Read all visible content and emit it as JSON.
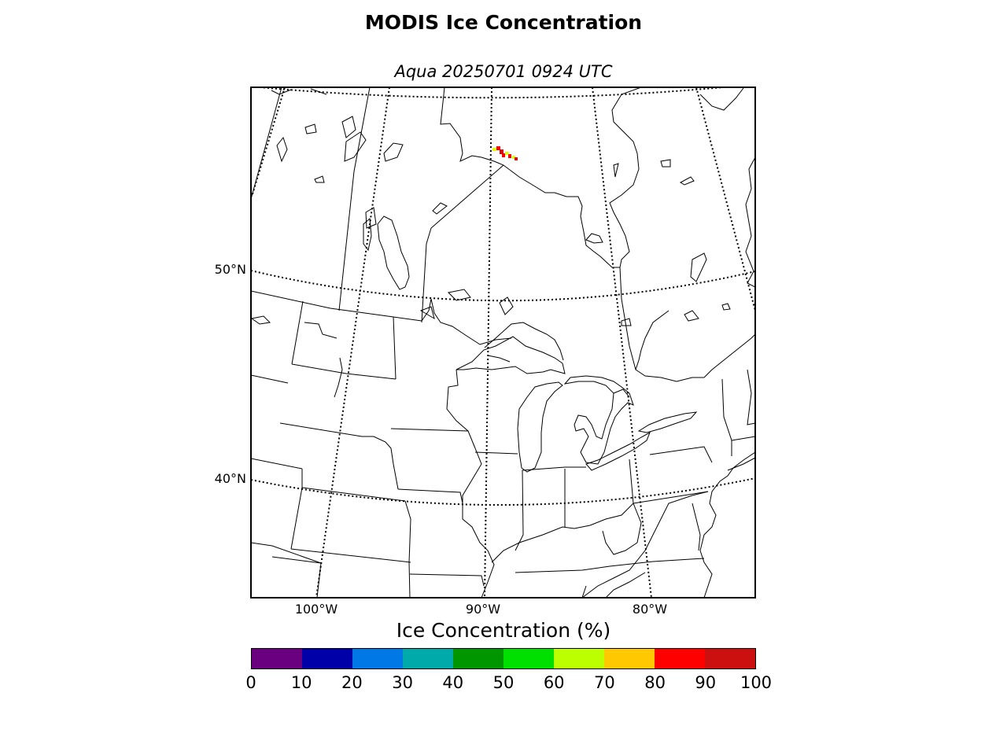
{
  "title": "MODIS Ice Concentration",
  "subtitle": "Aqua 20250701 0924 UTC",
  "map": {
    "latitude_labels": [
      "50°N",
      "40°N"
    ],
    "longitude_labels": [
      "100°W",
      "90°W",
      "80°W"
    ],
    "latitude_grid_values": [
      50,
      40
    ],
    "longitude_grid_values": [
      -100,
      -90,
      -80
    ],
    "graticule_style": "dotted",
    "land_color": "#ffffff",
    "line_color": "#000000"
  },
  "colorbar": {
    "label": "Ice Concentration (%)",
    "ticks": [
      "0",
      "10",
      "20",
      "30",
      "40",
      "50",
      "60",
      "70",
      "80",
      "90",
      "100"
    ],
    "colors": [
      "#6a0080",
      "#0000a8",
      "#0078e6",
      "#00aaaa",
      "#009600",
      "#00e000",
      "#bbff00",
      "#ffc800",
      "#ff0000",
      "#cc1010"
    ]
  },
  "ice_detections": [
    {
      "concentration": 90,
      "color": "#ff0000"
    },
    {
      "concentration": 95,
      "color": "#cc1010"
    },
    {
      "concentration": 70,
      "color": "#e0ff00"
    }
  ]
}
